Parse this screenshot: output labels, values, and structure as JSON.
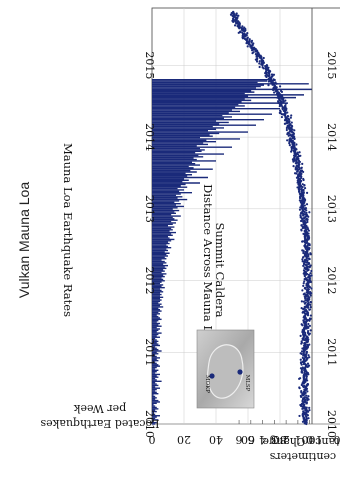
{
  "page": {
    "title": "Vulkan Mauna Loa"
  },
  "inset_map": {
    "labels": [
      "MOKP",
      "MLSP"
    ],
    "dot_color": "#1a2a7a"
  },
  "chart_data": [
    {
      "type": "bar",
      "title": "Mauna Loa Earthquake Rates",
      "ylabel_line1": "Located Earthquakes",
      "ylabel_line2": "per Week",
      "xlabel": "",
      "xlim": [
        2010,
        2015.8
      ],
      "ylim": [
        0,
        120
      ],
      "x_ticks": [
        2010,
        2011,
        2012,
        2013,
        2014,
        2015
      ],
      "y_ticks": [
        0,
        20,
        40,
        60,
        80,
        100,
        120
      ],
      "grid": true,
      "color": "#1a2a7a",
      "series": [
        {
          "values": [
            2,
            3,
            1,
            4,
            2,
            3,
            5,
            2,
            1,
            3,
            2,
            4,
            3,
            2,
            1,
            3,
            5,
            4,
            2,
            3,
            2,
            1,
            4,
            3,
            2,
            3,
            5,
            2,
            4,
            3,
            2,
            6,
            3,
            2,
            4,
            3,
            5,
            2,
            3,
            4,
            2,
            3,
            5,
            4,
            3,
            2,
            4,
            3,
            5,
            3,
            2,
            4,
            3,
            6,
            4,
            3,
            2,
            5,
            4,
            3,
            4,
            3,
            2,
            5,
            3,
            4,
            6,
            3,
            4,
            5,
            3,
            6,
            4,
            5,
            3,
            4,
            6,
            5,
            4,
            3,
            5,
            4,
            6,
            5,
            4,
            7,
            5,
            6,
            4,
            5,
            6,
            5,
            7,
            5,
            6,
            5,
            7,
            6,
            5,
            8,
            6,
            7,
            5,
            6,
            8,
            7,
            6,
            8,
            7,
            9,
            6,
            8,
            7,
            9,
            8,
            10,
            7,
            9,
            8,
            6,
            9,
            8,
            10,
            9,
            11,
            8,
            10,
            9,
            12,
            10,
            9,
            11,
            10,
            12,
            14,
            11,
            10,
            13,
            12,
            15,
            11,
            13,
            12,
            14,
            10,
            13,
            15,
            12,
            16,
            14,
            13,
            18,
            12,
            15,
            14,
            17,
            13,
            16,
            20,
            15,
            18,
            14,
            17,
            22,
            16,
            19,
            15,
            18,
            25,
            17,
            20,
            16,
            22,
            18,
            21,
            30,
            19,
            23,
            20,
            35,
            22,
            25,
            21,
            28,
            24,
            38,
            26,
            23,
            30,
            27,
            25,
            40,
            28,
            26,
            32,
            29,
            45,
            27,
            31,
            33,
            30,
            50,
            28,
            35,
            32,
            40,
            34,
            55,
            30,
            38,
            36,
            42,
            60,
            35,
            40,
            45,
            38,
            65,
            42,
            48,
            40,
            70,
            45,
            50,
            44,
            75,
            48,
            55,
            50,
            80,
            52,
            58,
            54,
            85,
            56,
            62,
            58,
            90,
            60,
            95,
            58,
            64,
            62,
            100,
            65,
            68,
            70,
            98,
            66,
            72,
            75
          ],
          "x_start": 2010.0,
          "x_step": 0.0192
        }
      ]
    },
    {
      "type": "scatter",
      "title": "Distance Across Mauna Loa's Summit Caldera",
      "title_line1": "Distance Across Mauna Loa's",
      "title_line2": "Summit Caldera",
      "ylabel_line1": "Distance Change",
      "ylabel_line2": "in centimeters",
      "xlim": [
        2010,
        2015.8
      ],
      "ylim": [
        -0.2,
        6.6
      ],
      "x_ticks": [
        2010,
        2011,
        2012,
        2013,
        2014,
        2015
      ],
      "y_ticks": [
        0,
        1,
        2,
        3,
        4,
        5,
        6
      ],
      "grid": false,
      "color": "#1a2a7a",
      "trend": [
        [
          2010.0,
          0.4
        ],
        [
          2010.5,
          0.5
        ],
        [
          2011.0,
          0.4
        ],
        [
          2011.5,
          0.3
        ],
        [
          2012.0,
          0.2
        ],
        [
          2012.5,
          0.3
        ],
        [
          2013.0,
          0.5
        ],
        [
          2013.5,
          0.9
        ],
        [
          2014.0,
          1.5
        ],
        [
          2014.5,
          2.4
        ],
        [
          2014.8,
          3.2
        ],
        [
          2015.0,
          3.9
        ],
        [
          2015.2,
          4.6
        ],
        [
          2015.4,
          5.5
        ],
        [
          2015.6,
          6.2
        ],
        [
          2015.75,
          6.5
        ]
      ]
    }
  ]
}
